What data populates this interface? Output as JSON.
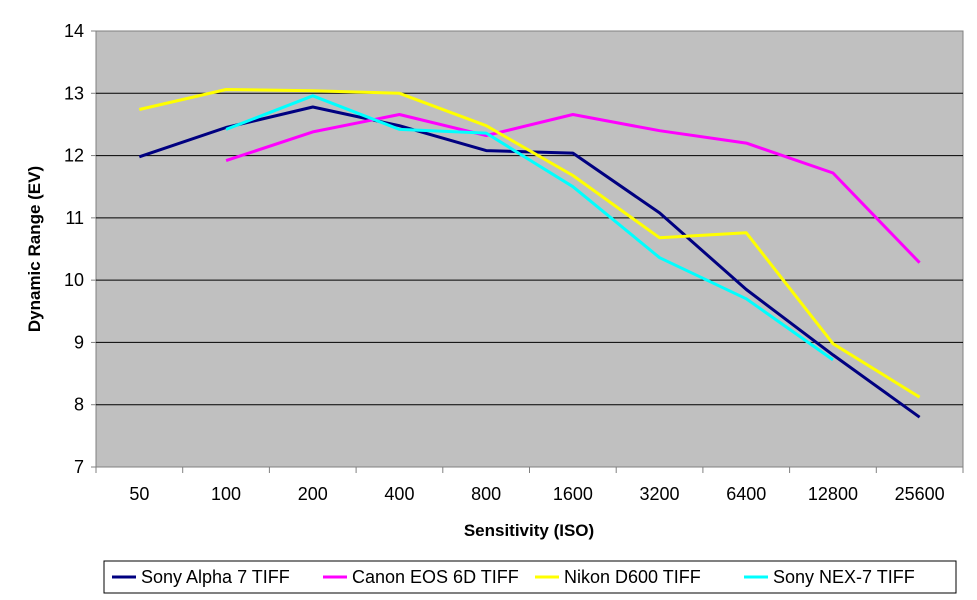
{
  "chart_data": {
    "type": "line",
    "xlabel": "Sensitivity (ISO)",
    "ylabel": "Dynamic Range (EV)",
    "categories": [
      "50",
      "100",
      "200",
      "400",
      "800",
      "1600",
      "3200",
      "6400",
      "12800",
      "25600"
    ],
    "ylim": [
      7,
      14
    ],
    "yticks": [
      "7",
      "8",
      "9",
      "10",
      "11",
      "12",
      "13",
      "14"
    ],
    "grid": true,
    "legend_position": "bottom",
    "plot_background": "#c0c0c0",
    "series": [
      {
        "name": "Sony Alpha 7 TIFF",
        "color": "#000080",
        "values": [
          11.98,
          12.45,
          12.78,
          12.48,
          12.08,
          12.04,
          11.08,
          9.85,
          8.8,
          7.8
        ]
      },
      {
        "name": "Canon EOS 6D TIFF",
        "color": "#ff00ff",
        "values": [
          null,
          11.92,
          12.38,
          12.66,
          12.32,
          12.66,
          12.4,
          12.2,
          11.72,
          10.28
        ]
      },
      {
        "name": "Nikon D600 TIFF",
        "color": "#ffff00",
        "values": [
          12.74,
          13.06,
          13.04,
          13.0,
          12.48,
          11.68,
          10.68,
          10.76,
          8.98,
          8.12
        ]
      },
      {
        "name": "Sony NEX-7 TIFF",
        "color": "#00ffff",
        "values": [
          null,
          12.42,
          12.96,
          12.42,
          12.36,
          11.5,
          10.36,
          9.7,
          8.72,
          null
        ]
      }
    ]
  }
}
